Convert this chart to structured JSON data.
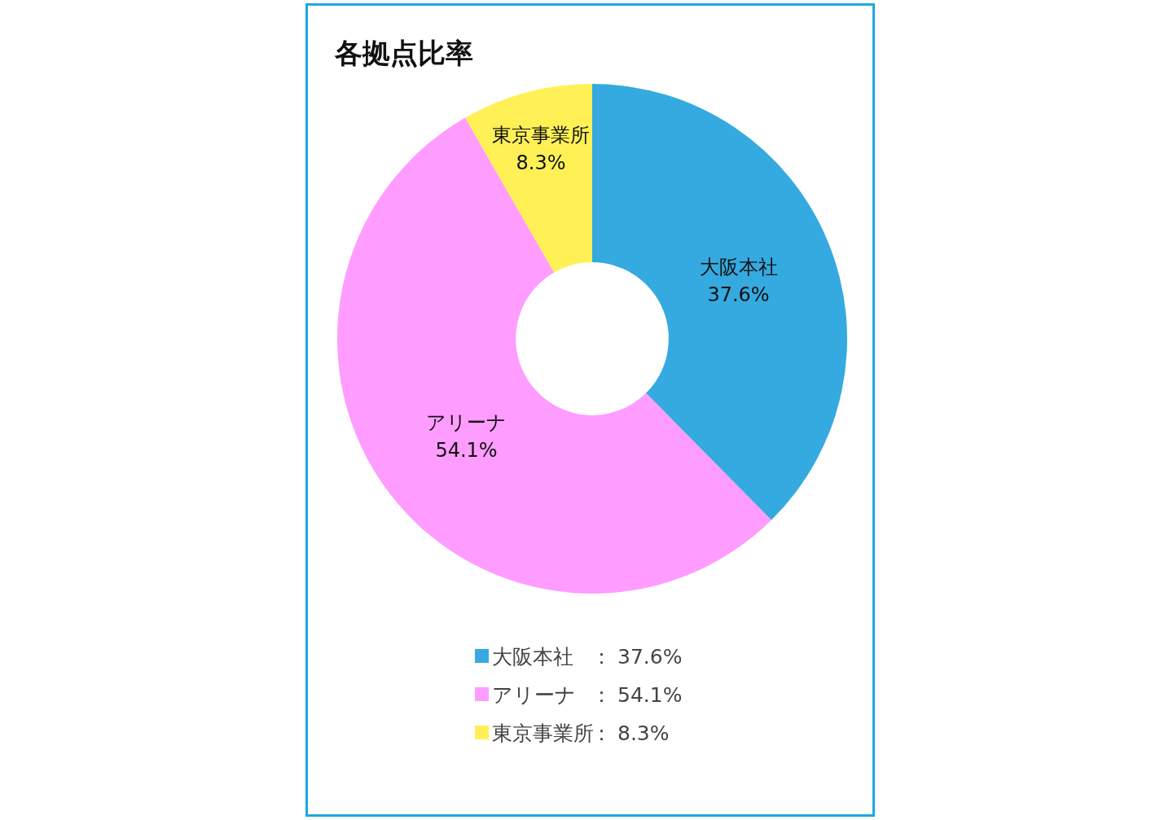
{
  "chart_data": {
    "type": "donut",
    "title": "各拠点比率",
    "categories": [
      "大阪本社",
      "アリーナ",
      "東京事業所"
    ],
    "values": [
      37.6,
      54.1,
      8.3
    ],
    "colors": [
      "#35aae0",
      "#ff9cff",
      "#fff155"
    ],
    "value_labels": [
      "37.6%",
      "54.1%",
      "8.3%"
    ],
    "legend": "bottom",
    "annotations": [
      "：",
      "：",
      "："
    ]
  }
}
